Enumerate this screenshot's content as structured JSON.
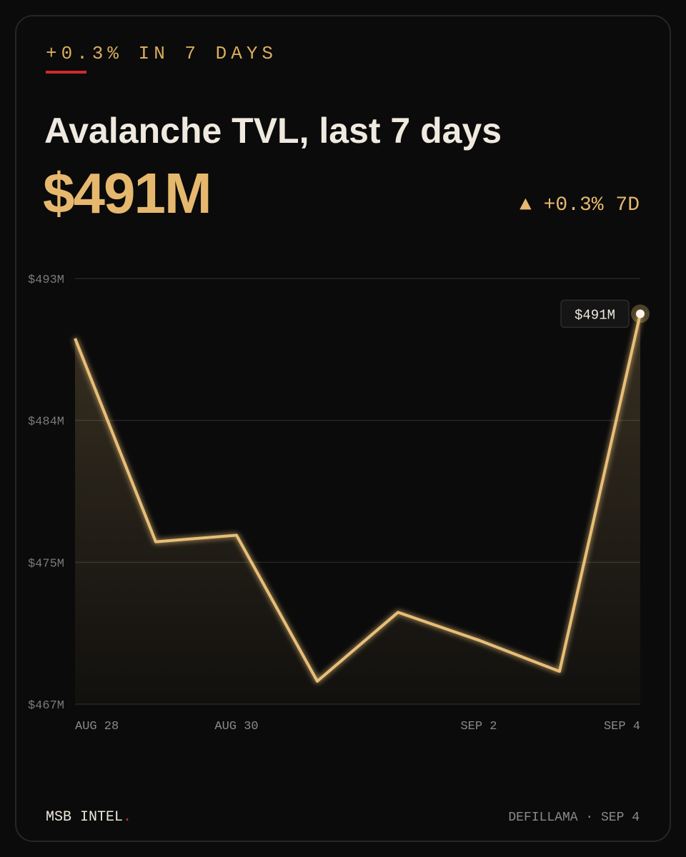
{
  "kicker": "+0.3% IN 7 DAYS",
  "headline": "$491M",
  "change": "▲ +0.3% 7D",
  "footer": {
    "brand": "MSB INTEL",
    "brand_mark": ".",
    "source": "DEFILLAMA · SEP 4"
  },
  "chart_data": {
    "type": "line",
    "title": "Avalanche TVL, last 7 days",
    "categories": [
      "AUG 28",
      null,
      "AUG 30",
      null,
      null,
      "SEP 2",
      null,
      "SEP 4"
    ],
    "series": [
      {
        "name": "Avalanche TVL",
        "color": "#e8bf78",
        "values": [
          489.1,
          476.7,
          477.1,
          468.2,
          472.4,
          470.7,
          468.8,
          490.6
        ],
        "value_labels": [
          null,
          null,
          null,
          null,
          null,
          null,
          null,
          "$491M"
        ]
      }
    ],
    "ylim": [
      466.8,
      492.75
    ],
    "yticks": [
      {
        "value": 466.8,
        "label": "$467M"
      },
      {
        "value": 475.45,
        "label": "$475M"
      },
      {
        "value": 484.1,
        "label": "$484M"
      },
      {
        "value": 492.75,
        "label": "$493M"
      }
    ],
    "grid": true
  }
}
